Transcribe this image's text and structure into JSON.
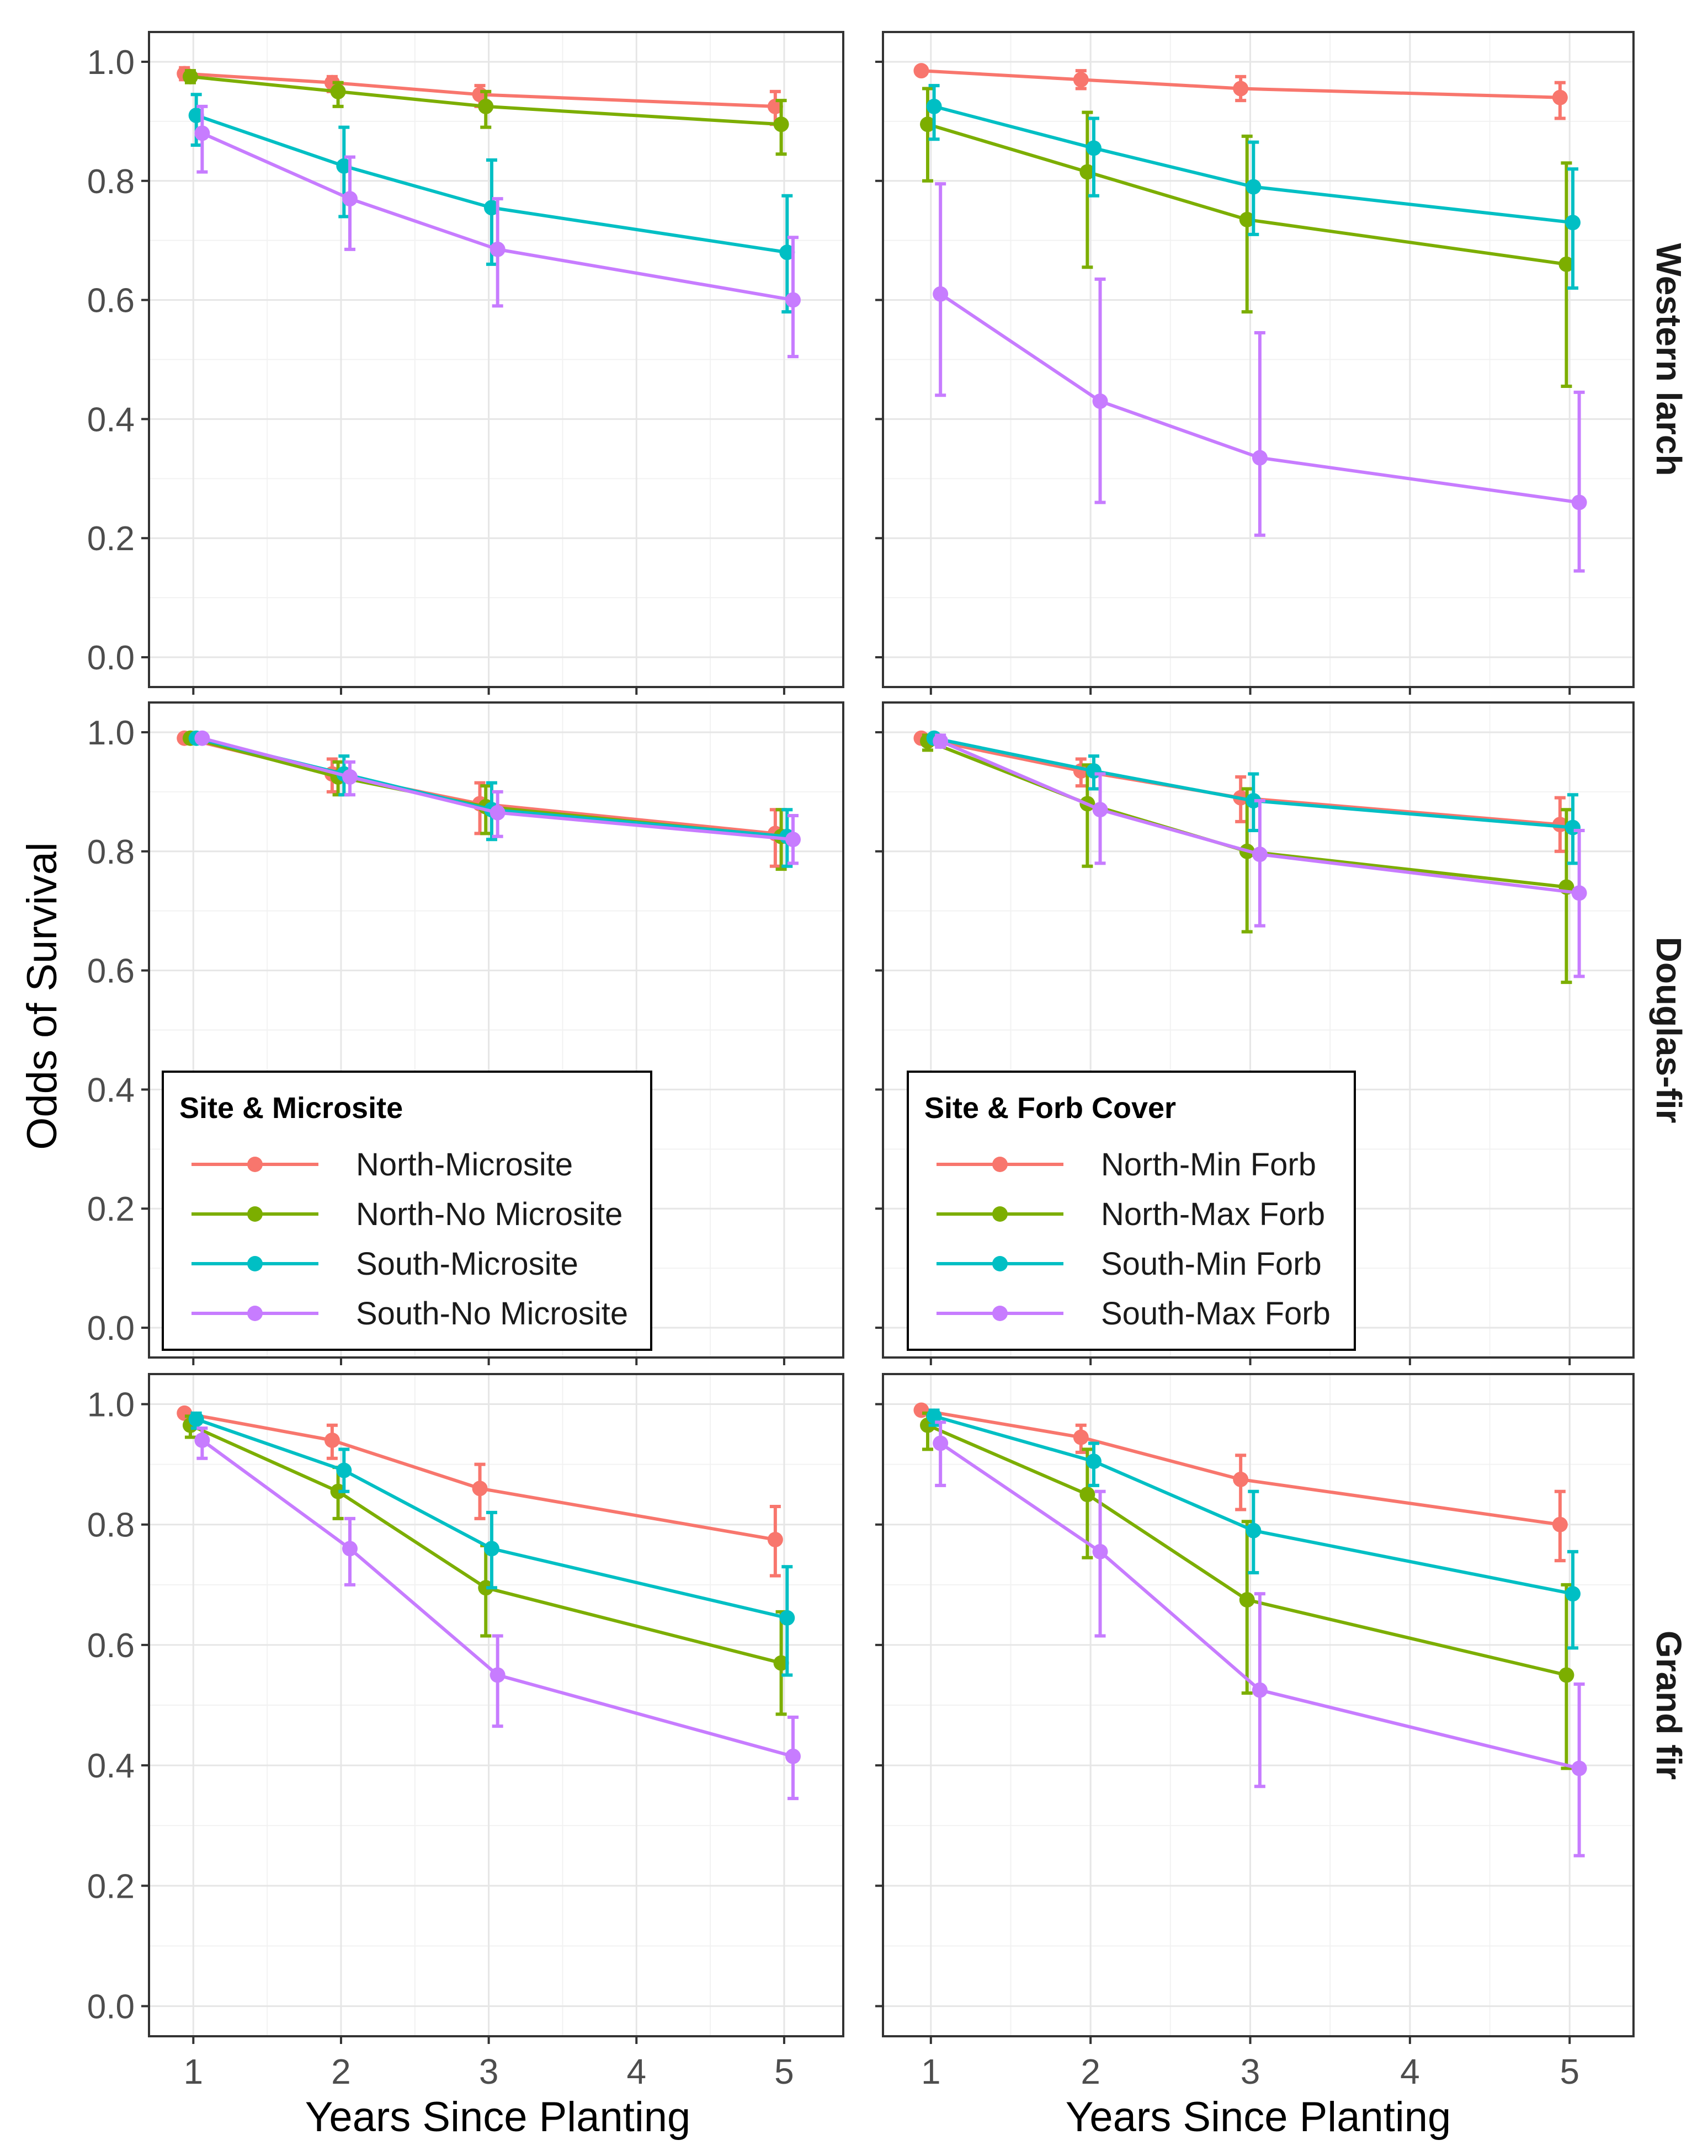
{
  "y_axis_title": "Odds of Survival",
  "x_axis_title": "Years Since Planting",
  "colors": {
    "north_1": "#F8766D",
    "north_2": "#7CAE00",
    "south_1": "#00BFC4",
    "south_2": "#C77CFF"
  },
  "legends": [
    {
      "title": "Site & Microsite",
      "entries": [
        {
          "label": "North-Microsite",
          "color": "#F8766D"
        },
        {
          "label": "North-No Microsite",
          "color": "#7CAE00"
        },
        {
          "label": "South-Microsite",
          "color": "#00BFC4"
        },
        {
          "label": "South-No Microsite",
          "color": "#C77CFF"
        }
      ]
    },
    {
      "title": "Site & Forb Cover",
      "entries": [
        {
          "label": "North-Min Forb",
          "color": "#F8766D"
        },
        {
          "label": "North-Max Forb",
          "color": "#7CAE00"
        },
        {
          "label": "South-Min Forb",
          "color": "#00BFC4"
        },
        {
          "label": "South-Max Forb",
          "color": "#C77CFF"
        }
      ]
    }
  ],
  "chart_data": [
    {
      "type": "line",
      "species": "Western larch",
      "legend_group": "Site & Microsite",
      "xlabel": "Years Since Planting",
      "ylabel": "Odds of Survival",
      "x_ticks": [
        1,
        2,
        3,
        4,
        5
      ],
      "y_ticks": [
        0.0,
        0.2,
        0.4,
        0.6,
        0.8,
        1.0
      ],
      "xlim": [
        0.7,
        5.4
      ],
      "ylim": [
        -0.05,
        1.05
      ],
      "series": [
        {
          "name": "North-Microsite",
          "color": "#F8766D",
          "x": [
            1,
            2,
            3,
            5
          ],
          "y": [
            0.98,
            0.965,
            0.945,
            0.925
          ],
          "lower": [
            0.97,
            0.95,
            0.925,
            0.895
          ],
          "upper": [
            0.99,
            0.975,
            0.96,
            0.95
          ]
        },
        {
          "name": "North-No Microsite",
          "color": "#7CAE00",
          "x": [
            1,
            2,
            3,
            5
          ],
          "y": [
            0.975,
            0.95,
            0.925,
            0.895
          ],
          "lower": [
            0.965,
            0.925,
            0.89,
            0.845
          ],
          "upper": [
            0.985,
            0.965,
            0.95,
            0.935
          ]
        },
        {
          "name": "South-Microsite",
          "color": "#00BFC4",
          "x": [
            1,
            2,
            3,
            5
          ],
          "y": [
            0.91,
            0.825,
            0.755,
            0.68
          ],
          "lower": [
            0.86,
            0.74,
            0.66,
            0.58
          ],
          "upper": [
            0.945,
            0.89,
            0.835,
            0.775
          ]
        },
        {
          "name": "South-No Microsite",
          "color": "#C77CFF",
          "x": [
            1,
            2,
            3,
            5
          ],
          "y": [
            0.88,
            0.77,
            0.685,
            0.6
          ],
          "lower": [
            0.815,
            0.685,
            0.59,
            0.505
          ],
          "upper": [
            0.925,
            0.84,
            0.77,
            0.705
          ]
        }
      ]
    },
    {
      "type": "line",
      "species": "Western larch",
      "legend_group": "Site & Forb Cover",
      "xlabel": "Years Since Planting",
      "ylabel": "Odds of Survival",
      "x_ticks": [
        1,
        2,
        3,
        4,
        5
      ],
      "y_ticks": [
        0.0,
        0.2,
        0.4,
        0.6,
        0.8,
        1.0
      ],
      "xlim": [
        0.7,
        5.4
      ],
      "ylim": [
        -0.05,
        1.05
      ],
      "series": [
        {
          "name": "North-Min Forb",
          "color": "#F8766D",
          "x": [
            1,
            2,
            3,
            5
          ],
          "y": [
            0.985,
            0.97,
            0.955,
            0.94
          ],
          "lower": [
            0.98,
            0.955,
            0.935,
            0.905
          ],
          "upper": [
            0.99,
            0.985,
            0.975,
            0.965
          ]
        },
        {
          "name": "North-Max Forb",
          "color": "#7CAE00",
          "x": [
            1,
            2,
            3,
            5
          ],
          "y": [
            0.895,
            0.815,
            0.735,
            0.66
          ],
          "lower": [
            0.8,
            0.655,
            0.58,
            0.455
          ],
          "upper": [
            0.955,
            0.915,
            0.875,
            0.83
          ]
        },
        {
          "name": "South-Min Forb",
          "color": "#00BFC4",
          "x": [
            1,
            2,
            3,
            5
          ],
          "y": [
            0.925,
            0.855,
            0.79,
            0.73
          ],
          "lower": [
            0.87,
            0.775,
            0.71,
            0.62
          ],
          "upper": [
            0.96,
            0.905,
            0.865,
            0.82
          ]
        },
        {
          "name": "South-Max Forb",
          "color": "#C77CFF",
          "x": [
            1,
            2,
            3,
            5
          ],
          "y": [
            0.61,
            0.43,
            0.335,
            0.26
          ],
          "lower": [
            0.44,
            0.26,
            0.205,
            0.145
          ],
          "upper": [
            0.795,
            0.635,
            0.545,
            0.445
          ]
        }
      ]
    },
    {
      "type": "line",
      "species": "Douglas-fir",
      "legend_group": "Site & Microsite",
      "xlabel": "Years Since Planting",
      "ylabel": "Odds of Survival",
      "x_ticks": [
        1,
        2,
        3,
        4,
        5
      ],
      "y_ticks": [
        0.0,
        0.2,
        0.4,
        0.6,
        0.8,
        1.0
      ],
      "xlim": [
        0.7,
        5.4
      ],
      "ylim": [
        -0.05,
        1.05
      ],
      "series": [
        {
          "name": "North-Microsite",
          "color": "#F8766D",
          "x": [
            1,
            2,
            3,
            5
          ],
          "y": [
            0.99,
            0.93,
            0.88,
            0.83
          ],
          "lower": [
            0.985,
            0.9,
            0.83,
            0.775
          ],
          "upper": [
            0.995,
            0.955,
            0.915,
            0.87
          ]
        },
        {
          "name": "North-No Microsite",
          "color": "#7CAE00",
          "x": [
            1,
            2,
            3,
            5
          ],
          "y": [
            0.99,
            0.925,
            0.875,
            0.825
          ],
          "lower": [
            0.985,
            0.895,
            0.83,
            0.77
          ],
          "upper": [
            0.995,
            0.95,
            0.91,
            0.87
          ]
        },
        {
          "name": "South-Microsite",
          "color": "#00BFC4",
          "x": [
            1,
            2,
            3,
            5
          ],
          "y": [
            0.99,
            0.93,
            0.87,
            0.825
          ],
          "lower": [
            0.985,
            0.895,
            0.82,
            0.775
          ],
          "upper": [
            0.995,
            0.96,
            0.915,
            0.87
          ]
        },
        {
          "name": "South-No Microsite",
          "color": "#C77CFF",
          "x": [
            1,
            2,
            3,
            5
          ],
          "y": [
            0.99,
            0.925,
            0.865,
            0.82
          ],
          "lower": [
            0.985,
            0.895,
            0.825,
            0.78
          ],
          "upper": [
            0.995,
            0.95,
            0.9,
            0.86
          ]
        }
      ]
    },
    {
      "type": "line",
      "species": "Douglas-fir",
      "legend_group": "Site & Forb Cover",
      "xlabel": "Years Since Planting",
      "ylabel": "Odds of Survival",
      "x_ticks": [
        1,
        2,
        3,
        4,
        5
      ],
      "y_ticks": [
        0.0,
        0.2,
        0.4,
        0.6,
        0.8,
        1.0
      ],
      "xlim": [
        0.7,
        5.4
      ],
      "ylim": [
        -0.05,
        1.05
      ],
      "series": [
        {
          "name": "North-Min Forb",
          "color": "#F8766D",
          "x": [
            1,
            2,
            3,
            5
          ],
          "y": [
            0.99,
            0.935,
            0.89,
            0.845
          ],
          "lower": [
            0.985,
            0.91,
            0.85,
            0.8
          ],
          "upper": [
            0.995,
            0.955,
            0.925,
            0.89
          ]
        },
        {
          "name": "North-Max Forb",
          "color": "#7CAE00",
          "x": [
            1,
            2,
            3,
            5
          ],
          "y": [
            0.985,
            0.88,
            0.8,
            0.74
          ],
          "lower": [
            0.97,
            0.775,
            0.665,
            0.58
          ],
          "upper": [
            0.995,
            0.945,
            0.905,
            0.87
          ]
        },
        {
          "name": "South-Min Forb",
          "color": "#00BFC4",
          "x": [
            1,
            2,
            3,
            5
          ],
          "y": [
            0.99,
            0.935,
            0.885,
            0.84
          ],
          "lower": [
            0.985,
            0.905,
            0.835,
            0.78
          ],
          "upper": [
            0.995,
            0.96,
            0.93,
            0.895
          ]
        },
        {
          "name": "South-Max Forb",
          "color": "#C77CFF",
          "x": [
            1,
            2,
            3,
            5
          ],
          "y": [
            0.985,
            0.87,
            0.795,
            0.73
          ],
          "lower": [
            0.975,
            0.78,
            0.675,
            0.59
          ],
          "upper": [
            0.995,
            0.93,
            0.885,
            0.835
          ]
        }
      ]
    },
    {
      "type": "line",
      "species": "Grand fir",
      "legend_group": "Site & Microsite",
      "xlabel": "Years Since Planting",
      "ylabel": "Odds of Survival",
      "x_ticks": [
        1,
        2,
        3,
        4,
        5
      ],
      "y_ticks": [
        0.0,
        0.2,
        0.4,
        0.6,
        0.8,
        1.0
      ],
      "xlim": [
        0.7,
        5.4
      ],
      "ylim": [
        -0.05,
        1.05
      ],
      "series": [
        {
          "name": "North-Microsite",
          "color": "#F8766D",
          "x": [
            1,
            2,
            3,
            5
          ],
          "y": [
            0.985,
            0.94,
            0.86,
            0.775
          ],
          "lower": [
            0.98,
            0.91,
            0.81,
            0.715
          ],
          "upper": [
            0.99,
            0.965,
            0.9,
            0.83
          ]
        },
        {
          "name": "North-No Microsite",
          "color": "#7CAE00",
          "x": [
            1,
            2,
            3,
            5
          ],
          "y": [
            0.965,
            0.855,
            0.695,
            0.57
          ],
          "lower": [
            0.945,
            0.81,
            0.615,
            0.485
          ],
          "upper": [
            0.98,
            0.895,
            0.765,
            0.655
          ]
        },
        {
          "name": "South-Microsite",
          "color": "#00BFC4",
          "x": [
            1,
            2,
            3,
            5
          ],
          "y": [
            0.975,
            0.89,
            0.76,
            0.645
          ],
          "lower": [
            0.96,
            0.855,
            0.695,
            0.55
          ],
          "upper": [
            0.985,
            0.925,
            0.82,
            0.73
          ]
        },
        {
          "name": "South-No Microsite",
          "color": "#C77CFF",
          "x": [
            1,
            2,
            3,
            5
          ],
          "y": [
            0.94,
            0.76,
            0.55,
            0.415
          ],
          "lower": [
            0.91,
            0.7,
            0.465,
            0.345
          ],
          "upper": [
            0.96,
            0.81,
            0.615,
            0.48
          ]
        }
      ]
    },
    {
      "type": "line",
      "species": "Grand fir",
      "legend_group": "Site & Forb Cover",
      "xlabel": "Years Since Planting",
      "ylabel": "Odds of Survival",
      "x_ticks": [
        1,
        2,
        3,
        4,
        5
      ],
      "y_ticks": [
        0.0,
        0.2,
        0.4,
        0.6,
        0.8,
        1.0
      ],
      "xlim": [
        0.7,
        5.4
      ],
      "ylim": [
        -0.05,
        1.05
      ],
      "series": [
        {
          "name": "North-Min Forb",
          "color": "#F8766D",
          "x": [
            1,
            2,
            3,
            5
          ],
          "y": [
            0.99,
            0.945,
            0.875,
            0.8
          ],
          "lower": [
            0.985,
            0.92,
            0.825,
            0.74
          ],
          "upper": [
            0.995,
            0.965,
            0.915,
            0.855
          ]
        },
        {
          "name": "North-Max Forb",
          "color": "#7CAE00",
          "x": [
            1,
            2,
            3,
            5
          ],
          "y": [
            0.965,
            0.85,
            0.675,
            0.55
          ],
          "lower": [
            0.925,
            0.745,
            0.52,
            0.395
          ],
          "upper": [
            0.985,
            0.925,
            0.805,
            0.7
          ]
        },
        {
          "name": "South-Min Forb",
          "color": "#00BFC4",
          "x": [
            1,
            2,
            3,
            5
          ],
          "y": [
            0.98,
            0.905,
            0.79,
            0.685
          ],
          "lower": [
            0.965,
            0.865,
            0.72,
            0.595
          ],
          "upper": [
            0.99,
            0.935,
            0.855,
            0.755
          ]
        },
        {
          "name": "South-Max Forb",
          "color": "#C77CFF",
          "x": [
            1,
            2,
            3,
            5
          ],
          "y": [
            0.935,
            0.755,
            0.525,
            0.395
          ],
          "lower": [
            0.865,
            0.615,
            0.365,
            0.25
          ],
          "upper": [
            0.97,
            0.855,
            0.685,
            0.535
          ]
        }
      ]
    }
  ]
}
